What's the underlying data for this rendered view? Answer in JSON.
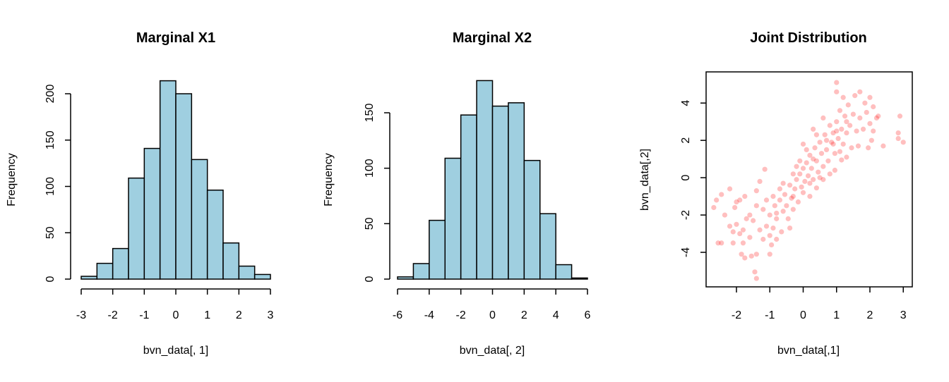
{
  "chart_data": [
    {
      "type": "bar",
      "title": "Marginal X1",
      "xlabel": "bvn_data[, 1]",
      "ylabel": "Frequency",
      "bin_edges": [
        -3,
        -2.5,
        -2,
        -1.5,
        -1,
        -0.5,
        0,
        0.5,
        1,
        1.5,
        2,
        2.5,
        3
      ],
      "values": [
        3,
        17,
        33,
        109,
        141,
        214,
        200,
        129,
        96,
        39,
        14,
        5
      ],
      "xticks": [
        "-3",
        "-2",
        "-1",
        "0",
        "1",
        "2",
        "3"
      ],
      "yticks": [
        "0",
        "50",
        "100",
        "150",
        "200"
      ],
      "xlim": [
        -3,
        3
      ],
      "ylim": [
        0,
        214
      ],
      "bar_color": "#9FCFE0"
    },
    {
      "type": "bar",
      "title": "Marginal X2",
      "xlabel": "bvn_data[, 2]",
      "ylabel": "Frequency",
      "bin_edges": [
        -6,
        -5,
        -4,
        -3,
        -2,
        -1,
        0,
        1,
        2,
        3,
        4,
        5,
        6
      ],
      "values": [
        2,
        14,
        53,
        109,
        148,
        179,
        156,
        159,
        107,
        59,
        13,
        1
      ],
      "xticks": [
        "-6",
        "-4",
        "-2",
        "0",
        "2",
        "4",
        "6"
      ],
      "yticks": [
        "0",
        "50",
        "100",
        "150"
      ],
      "xlim": [
        -6,
        6
      ],
      "ylim": [
        0,
        179
      ],
      "bar_color": "#9FCFE0"
    },
    {
      "type": "scatter",
      "title": "Joint Distribution",
      "xlabel": "bvn_data[,1]",
      "ylabel": "bvn_data[,2]",
      "xticks": [
        "-2",
        "-1",
        "0",
        "1",
        "2",
        "3"
      ],
      "yticks": [
        "-4",
        "-2",
        "0",
        "2",
        "4"
      ],
      "xlim": [
        -2.91,
        3.27
      ],
      "ylim": [
        -5.85,
        5.67
      ],
      "point_color": "#FF0000",
      "point_alpha": 0.25,
      "points": [
        [
          -2.68,
          -1.6
        ],
        [
          -2.6,
          -1.2
        ],
        [
          -2.45,
          -0.9
        ],
        [
          -2.2,
          -0.6
        ],
        [
          -2.55,
          -3.5
        ],
        [
          -2.45,
          -3.5
        ],
        [
          -2.1,
          -3.5
        ],
        [
          -2.2,
          -2.6
        ],
        [
          -2.35,
          -2.0
        ],
        [
          -2.0,
          -1.3
        ],
        [
          -2.05,
          -1.6
        ],
        [
          -1.9,
          -1.2
        ],
        [
          -1.75,
          -1.0
        ],
        [
          -1.3,
          -0.2
        ],
        [
          -1.15,
          0.45
        ],
        [
          -1.4,
          -0.7
        ],
        [
          -1.6,
          -2.0
        ],
        [
          -1.8,
          -3.5
        ],
        [
          -1.85,
          -4.1
        ],
        [
          -1.75,
          -4.3
        ],
        [
          -1.55,
          -4.2
        ],
        [
          -1.4,
          -4.1
        ],
        [
          -1.45,
          -5.05
        ],
        [
          -1.4,
          -5.4
        ],
        [
          -1.0,
          -4.1
        ],
        [
          -0.95,
          -3.6
        ],
        [
          -0.8,
          -3.3
        ],
        [
          1.0,
          5.1
        ],
        [
          1.0,
          4.6
        ],
        [
          1.7,
          4.6
        ],
        [
          1.55,
          4.4
        ],
        [
          1.2,
          4.3
        ],
        [
          2.0,
          4.3
        ],
        [
          1.85,
          4.0
        ],
        [
          2.1,
          3.8
        ],
        [
          2.25,
          3.3
        ],
        [
          2.9,
          3.3
        ],
        [
          2.85,
          2.4
        ],
        [
          3.0,
          1.9
        ],
        [
          2.85,
          2.1
        ],
        [
          2.4,
          1.7
        ],
        [
          2.05,
          2.0
        ],
        [
          1.95,
          1.6
        ],
        [
          1.65,
          1.7
        ],
        [
          1.45,
          1.6
        ],
        [
          1.3,
          1.1
        ],
        [
          1.15,
          0.95
        ],
        [
          0.95,
          0.4
        ],
        [
          0.6,
          -0.1
        ],
        [
          0.4,
          -0.55
        ],
        [
          0.2,
          -0.3
        ],
        [
          -0.3,
          -1.0
        ],
        [
          -2.0,
          -2.5
        ],
        [
          -1.8,
          -2.8
        ],
        [
          -1.6,
          -3.2
        ],
        [
          -1.5,
          -2.3
        ],
        [
          -1.3,
          -2.8
        ],
        [
          -1.2,
          -3.3
        ],
        [
          -1.1,
          -2.6
        ],
        [
          -1.0,
          -2.0
        ],
        [
          -0.9,
          -2.7
        ],
        [
          -0.85,
          -1.5
        ],
        [
          -0.8,
          -2.2
        ],
        [
          -0.7,
          -1.2
        ],
        [
          -0.65,
          -2.9
        ],
        [
          -0.6,
          -1.8
        ],
        [
          -0.55,
          -0.9
        ],
        [
          -0.5,
          -1.5
        ],
        [
          -0.45,
          -2.2
        ],
        [
          -0.4,
          -0.4
        ],
        [
          -0.35,
          -1.1
        ],
        [
          -0.3,
          -1.7
        ],
        [
          -0.25,
          -0.6
        ],
        [
          -0.2,
          -0.1
        ],
        [
          -0.15,
          -1.3
        ],
        [
          -0.1,
          0.2
        ],
        [
          -0.05,
          -0.5
        ],
        [
          0,
          0.5
        ],
        [
          0.05,
          -0.2
        ],
        [
          0.1,
          0.8
        ],
        [
          0.15,
          0.1
        ],
        [
          0.2,
          1.2
        ],
        [
          0.25,
          0.5
        ],
        [
          0.3,
          -0.1
        ],
        [
          0.35,
          1.6
        ],
        [
          0.4,
          0.9
        ],
        [
          0.45,
          0.3
        ],
        [
          0.5,
          1.9
        ],
        [
          0.55,
          1.3
        ],
        [
          0.6,
          0.6
        ],
        [
          0.65,
          2.3
        ],
        [
          0.7,
          1.5
        ],
        [
          0.75,
          0.9
        ],
        [
          0.8,
          2.8
        ],
        [
          0.85,
          1.9
        ],
        [
          0.9,
          2.4
        ],
        [
          0.95,
          1.3
        ],
        [
          1.0,
          3.0
        ],
        [
          1.05,
          2.1
        ],
        [
          1.1,
          3.6
        ],
        [
          1.15,
          2.6
        ],
        [
          1.2,
          1.8
        ],
        [
          1.25,
          3.3
        ],
        [
          1.3,
          2.4
        ],
        [
          1.35,
          3.9
        ],
        [
          1.4,
          2.8
        ],
        [
          1.5,
          3.4
        ],
        [
          1.6,
          2.5
        ],
        [
          1.7,
          3.2
        ],
        [
          1.8,
          2.6
        ],
        [
          1.9,
          3.5
        ],
        [
          2.0,
          2.9
        ],
        [
          2.1,
          2.5
        ],
        [
          2.2,
          3.2
        ],
        [
          -0.2,
          0.6
        ],
        [
          0.0,
          -0.8
        ],
        [
          0.3,
          1.0
        ],
        [
          -0.6,
          -0.3
        ],
        [
          -0.9,
          -1.0
        ],
        [
          -1.2,
          -1.7
        ],
        [
          -1.4,
          -1.5
        ],
        [
          -1.7,
          -2.2
        ],
        [
          -1.9,
          -3.0
        ],
        [
          -2.1,
          -2.9
        ],
        [
          0.1,
          1.5
        ],
        [
          0.5,
          0.0
        ],
        [
          0.7,
          2.0
        ],
        [
          0.4,
          2.3
        ],
        [
          0.2,
          -1.0
        ],
        [
          -0.1,
          0.9
        ],
        [
          0.9,
          1.8
        ],
        [
          1.1,
          1.4
        ],
        [
          0.6,
          3.2
        ],
        [
          0.3,
          2.6
        ],
        [
          -0.4,
          -2.7
        ],
        [
          -1.0,
          -3.1
        ],
        [
          -0.7,
          -0.6
        ],
        [
          0.0,
          1.8
        ],
        [
          0.8,
          0.2
        ],
        [
          1.3,
          3.0
        ],
        [
          1.0,
          2.5
        ],
        [
          -0.3,
          0.2
        ],
        [
          -0.8,
          -1.9
        ],
        [
          -1.1,
          -1.2
        ]
      ]
    }
  ]
}
